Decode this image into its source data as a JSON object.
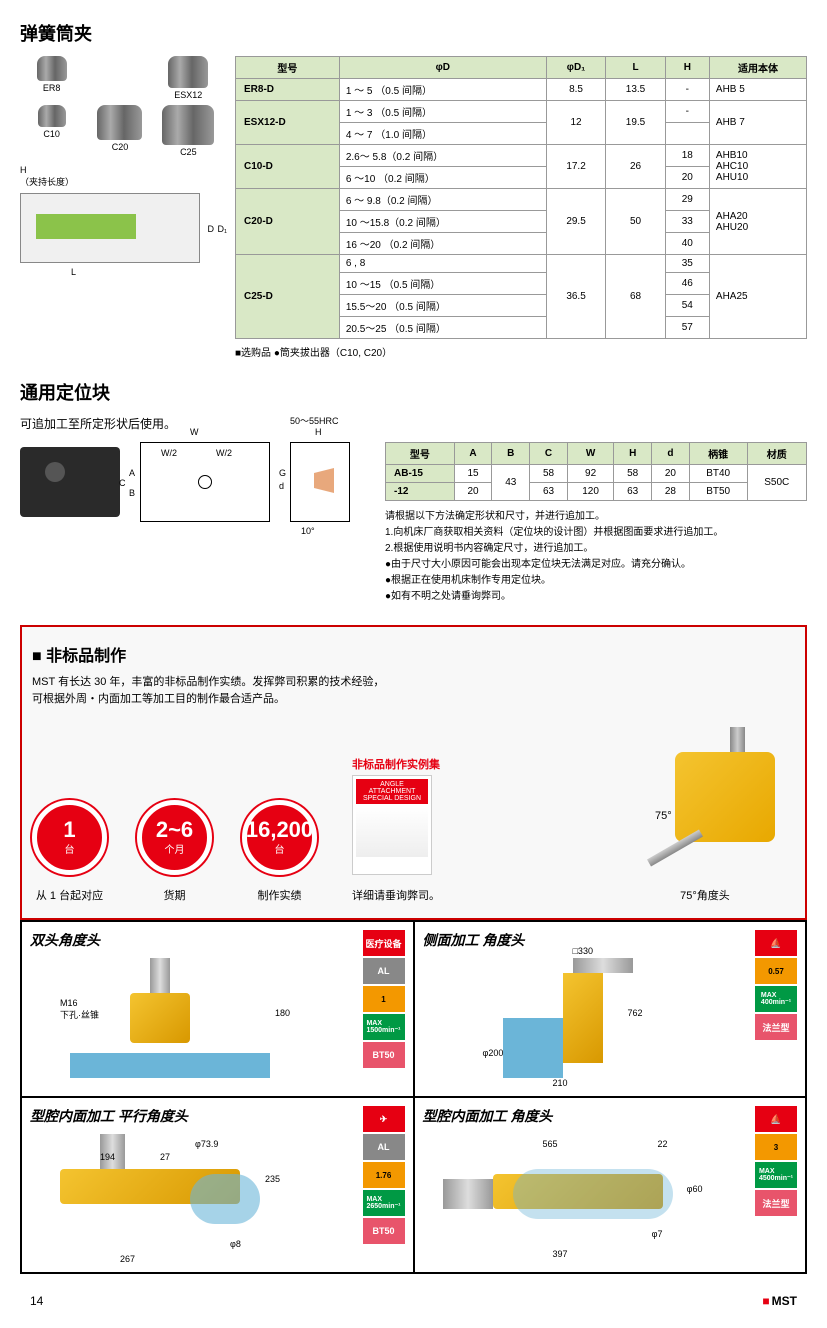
{
  "collet": {
    "title": "弹簧筒夹",
    "items": [
      "ER8",
      "ESX12",
      "C10",
      "C20",
      "C25"
    ],
    "schematic_labels": {
      "H": "H",
      "H_note": "（夹持长度）",
      "D": "D",
      "D1": "D₁",
      "L": "L"
    },
    "table": {
      "headers": [
        "型号",
        "φD",
        "φD₁",
        "L",
        "H",
        "适用本体"
      ],
      "rows": [
        {
          "model": "ER8-D",
          "d": "1 ～ 5  （0.5 间隔）",
          "d1": "8.5",
          "l": "13.5",
          "h": "-",
          "body": "AHB 5"
        },
        {
          "model": "ESX12-D",
          "d": "1 ～ 3  （0.5 间隔）",
          "d1": "12",
          "l": "19.5",
          "h": "-",
          "body": "AHB 7",
          "rowspan_model": 2
        },
        {
          "d": "4 ～ 7  （1.0 间隔）"
        },
        {
          "model": "C10-D",
          "d": "2.6～ 5.8（0.2 间隔）",
          "d1": "17.2",
          "l": "26",
          "h": "18",
          "body": "AHB10\nAHC10\nAHU10",
          "rowspan_model": 2
        },
        {
          "d": "6  ～10  （0.2 间隔）",
          "h": "20"
        },
        {
          "model": "C20-D",
          "d": "6 ～ 9.8（0.2 间隔）",
          "d1": "29.5",
          "l": "50",
          "h": "29",
          "body": "AHA20\nAHU20",
          "rowspan_model": 3
        },
        {
          "d": "10 ～15.8（0.2 间隔）",
          "h": "33"
        },
        {
          "d": "16 ～20  （0.2 间隔）",
          "h": "40"
        },
        {
          "model": "C25-D",
          "d": "6 , 8",
          "d1": "36.5",
          "l": "68",
          "h": "35",
          "body": "AHA25",
          "rowspan_model": 4
        },
        {
          "d": "10 ～15  （0.5 间隔）",
          "h": "46"
        },
        {
          "d": "15.5～20  （0.5 间隔）",
          "h": "54"
        },
        {
          "d": "20.5～25  （0.5 间隔）",
          "h": "57"
        }
      ]
    },
    "option_note": "■选购品   ●筒夹拔出器（C10, C20）"
  },
  "block": {
    "title": "通用定位块",
    "subtitle": "可追加工至所定形状后使用。",
    "hardness": "50～55HRC",
    "dims": {
      "W": "W",
      "W2": "W/2",
      "A": "A",
      "B": "B",
      "C": "C",
      "H": "H",
      "G": "G",
      "d": "d",
      "angle": "10°"
    },
    "table": {
      "headers": [
        "型号",
        "A",
        "B",
        "C",
        "W",
        "H",
        "d",
        "柄锥",
        "材质"
      ],
      "rows": [
        [
          "AB-15",
          "15",
          "43",
          "58",
          "92",
          "58",
          "20",
          "BT40",
          "S50C"
        ],
        [
          "-12",
          "20",
          "",
          "63",
          "120",
          "63",
          "28",
          "BT50",
          ""
        ]
      ]
    },
    "notes": [
      "请根据以下方法确定形状和尺寸，并进行追加工。",
      "1.向机床厂商获取相关资料（定位块的设计图）并根据图面要求进行追加工。",
      "2.根据使用说明书内容确定尺寸，进行追加工。",
      "●由于尺寸大小原因可能会出现本定位块无法满足对应。请充分确认。",
      "●根据正在使用机床制作专用定位块。",
      "●如有不明之处请垂询弊司。"
    ]
  },
  "custom": {
    "title": "非标品制作",
    "desc1": "MST 有长达 30 年，丰富的非标品制作实绩。发挥弊司积累的技术经验，",
    "desc2": "可根据外周・内面加工等加工目的制作最合适产品。",
    "circles": [
      {
        "big": "1",
        "small": "台",
        "caption": "从 1 台起对应"
      },
      {
        "big": "2~6",
        "small": "个月",
        "caption": "货期"
      },
      {
        "big": "16,200",
        "small": "台",
        "caption": "制作实绩"
      }
    ],
    "catalog": {
      "title": "非标品制作实例集",
      "header": "ANGLE ATTACHMENT\nSPECIAL DESIGN",
      "note": "详细请垂询弊司。"
    },
    "angle_head": {
      "angle": "75°",
      "caption": "75°角度头"
    }
  },
  "examples": [
    {
      "title": "双头角度头",
      "badges": [
        {
          "text": "医疗设备",
          "cls": "badge-red"
        },
        {
          "text": "AL",
          "cls": "badge-gray"
        },
        {
          "text": "1",
          "cls": "badge-orange"
        },
        {
          "text": "MAX\n1500min⁻¹",
          "cls": "badge-green"
        },
        {
          "text": "BT50",
          "cls": "badge-bt"
        }
      ],
      "dims": {
        "label1": "M16\n下孔·丝锥",
        "v": "180"
      }
    },
    {
      "title": "侧面加工 角度头",
      "badges": [
        {
          "text": "⛵",
          "cls": "badge-red"
        },
        {
          "text": "0.57",
          "cls": "badge-orange"
        },
        {
          "text": "MAX\n400min⁻¹",
          "cls": "badge-green"
        },
        {
          "text": "法兰型",
          "cls": "badge-flange"
        }
      ],
      "dims": {
        "w1": "□330",
        "h1": "762",
        "d1": "φ200",
        "w2": "210"
      }
    },
    {
      "title": "型腔内面加工 平行角度头",
      "badges": [
        {
          "text": "✈",
          "cls": "badge-red"
        },
        {
          "text": "AL",
          "cls": "badge-gray"
        },
        {
          "text": "1.76",
          "cls": "badge-orange"
        },
        {
          "text": "MAX\n2650min⁻¹",
          "cls": "badge-green"
        },
        {
          "text": "BT50",
          "cls": "badge-bt"
        }
      ],
      "dims": {
        "w1": "194",
        "w2": "27",
        "d1": "φ73.9",
        "h1": "235",
        "w3": "267",
        "d2": "φ8"
      }
    },
    {
      "title": "型腔内面加工 角度头",
      "badges": [
        {
          "text": "⛵",
          "cls": "badge-red"
        },
        {
          "text": "3",
          "cls": "badge-orange"
        },
        {
          "text": "MAX\n4500min⁻¹",
          "cls": "badge-green"
        },
        {
          "text": "法兰型",
          "cls": "badge-flange"
        }
      ],
      "dims": {
        "w1": "565",
        "w2": "22",
        "d1": "φ60",
        "d2": "φ7",
        "w3": "397"
      }
    }
  ],
  "footer": {
    "page": "14",
    "logo": "MST"
  }
}
